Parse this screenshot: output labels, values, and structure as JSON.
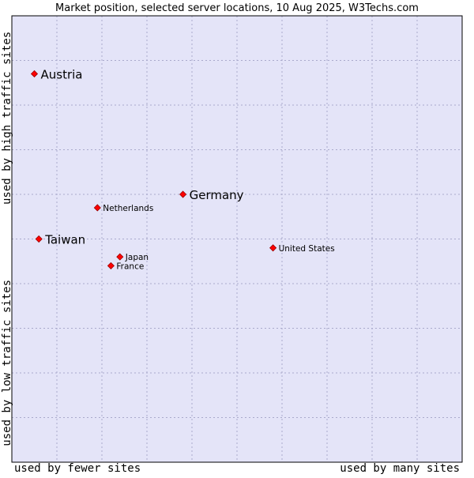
{
  "chart_data": {
    "type": "scatter",
    "title": "Market position, selected server locations, 10 Aug 2025, W3Techs.com",
    "xlabel_left": "used by fewer sites",
    "xlabel_right": "used by many sites",
    "ylabel_top": "used by high traffic sites",
    "ylabel_bottom": "used by low traffic sites",
    "xlim": [
      0,
      10
    ],
    "ylim": [
      0,
      10
    ],
    "grid": true,
    "points": [
      {
        "name": "Austria",
        "x": 0.5,
        "y": 8.7,
        "emphasis": "large"
      },
      {
        "name": "Germany",
        "x": 3.8,
        "y": 6.0,
        "emphasis": "large"
      },
      {
        "name": "Netherlands",
        "x": 1.9,
        "y": 5.7,
        "emphasis": "small"
      },
      {
        "name": "Taiwan",
        "x": 0.6,
        "y": 5.0,
        "emphasis": "large"
      },
      {
        "name": "United States",
        "x": 5.8,
        "y": 4.8,
        "emphasis": "small"
      },
      {
        "name": "Japan",
        "x": 2.4,
        "y": 4.6,
        "emphasis": "small"
      },
      {
        "name": "France",
        "x": 2.2,
        "y": 4.4,
        "emphasis": "small"
      }
    ],
    "colors": {
      "plot_background": "#e4e4f8",
      "grid": "#aaaacc",
      "marker_fill": "#ff0000",
      "marker_stroke": "#990000"
    }
  }
}
